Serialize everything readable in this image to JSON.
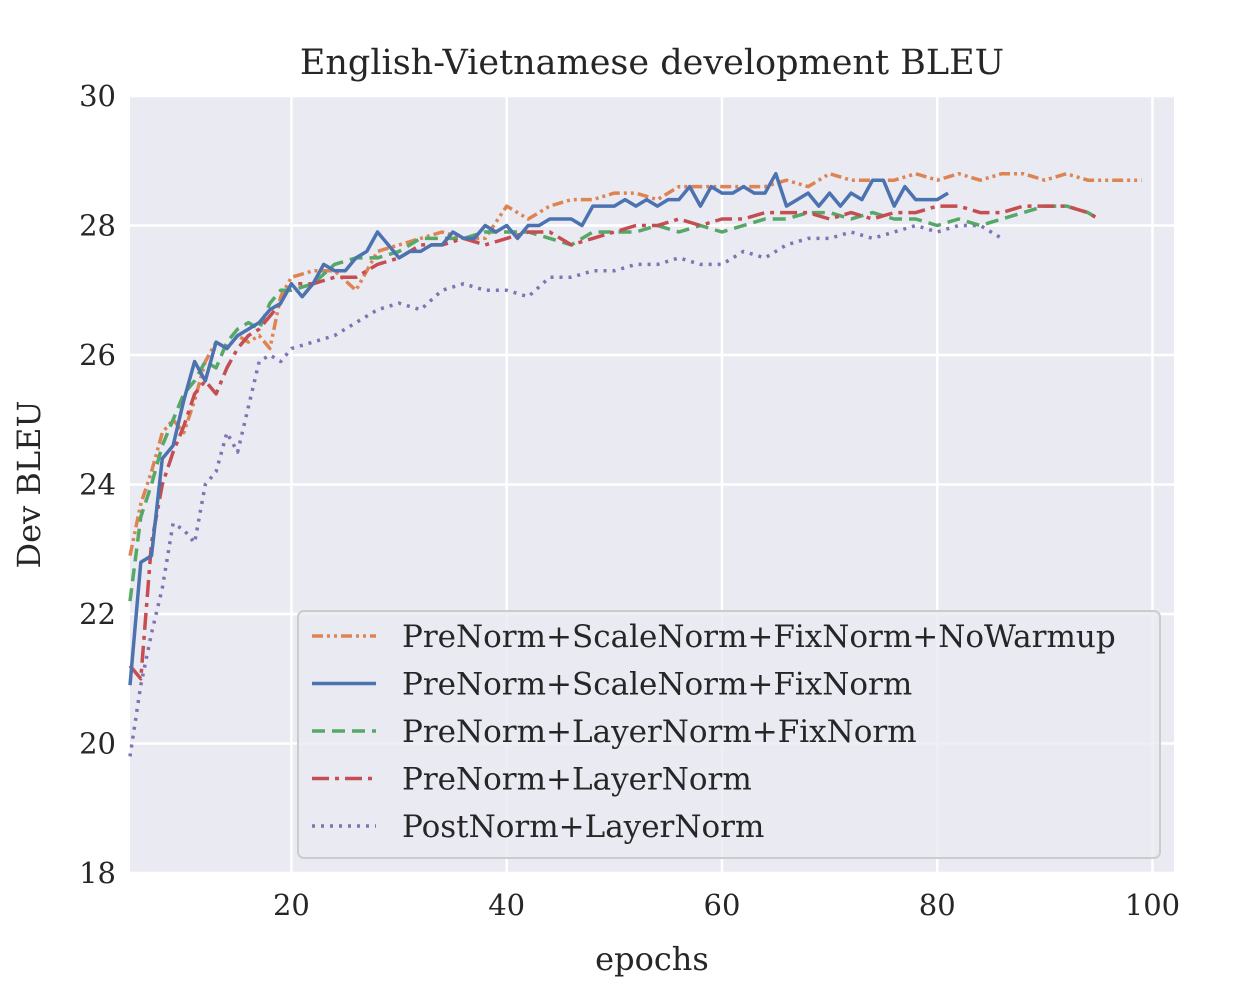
{
  "colors": {
    "background": "#eaeaf2",
    "grid": "#ffffff",
    "legend_bg": "#eaeaf2",
    "legend_border": "#cccccc",
    "text": "#262626"
  },
  "chart_data": {
    "type": "line",
    "title": "English-Vietnamese development BLEU",
    "xlabel": "epochs",
    "ylabel": "Dev BLEU",
    "xlim": [
      5,
      102
    ],
    "ylim": [
      18,
      30
    ],
    "xticks": [
      20,
      40,
      60,
      80,
      100
    ],
    "yticks": [
      18,
      20,
      22,
      24,
      26,
      28,
      30
    ],
    "grid": true,
    "legend_position": "lower-right",
    "series": [
      {
        "name": "PreNorm+ScaleNorm+FixNorm+NoWarmup",
        "color": "#dd8452",
        "dash": "dashdotdot",
        "x": [
          5,
          6,
          7,
          8,
          9,
          10,
          11,
          12,
          13,
          14,
          15,
          16,
          17,
          18,
          19,
          20,
          22,
          24,
          26,
          28,
          30,
          32,
          34,
          36,
          38,
          40,
          42,
          44,
          46,
          48,
          50,
          52,
          54,
          56,
          58,
          60,
          62,
          64,
          66,
          68,
          70,
          72,
          74,
          76,
          78,
          80,
          82,
          84,
          86,
          88,
          90,
          92,
          94,
          96,
          98,
          99
        ],
        "y": [
          22.9,
          23.7,
          24.2,
          24.8,
          25.0,
          24.8,
          25.3,
          25.9,
          26.2,
          26.1,
          26.3,
          26.2,
          26.3,
          26.1,
          26.9,
          27.2,
          27.3,
          27.3,
          27.0,
          27.6,
          27.7,
          27.8,
          27.9,
          27.8,
          27.8,
          28.3,
          28.1,
          28.3,
          28.4,
          28.4,
          28.5,
          28.5,
          28.4,
          28.6,
          28.6,
          28.6,
          28.6,
          28.6,
          28.7,
          28.6,
          28.8,
          28.7,
          28.7,
          28.7,
          28.8,
          28.7,
          28.8,
          28.7,
          28.8,
          28.8,
          28.7,
          28.8,
          28.7,
          28.7,
          28.7,
          28.7
        ]
      },
      {
        "name": "PreNorm+ScaleNorm+FixNorm",
        "color": "#4c72b0",
        "dash": "solid",
        "x": [
          5,
          6,
          7,
          8,
          9,
          10,
          11,
          12,
          13,
          14,
          15,
          16,
          17,
          18,
          19,
          20,
          21,
          22,
          23,
          24,
          25,
          26,
          27,
          28,
          29,
          30,
          31,
          32,
          33,
          34,
          35,
          36,
          37,
          38,
          39,
          40,
          41,
          42,
          43,
          44,
          45,
          46,
          47,
          48,
          49,
          50,
          51,
          52,
          53,
          54,
          55,
          56,
          57,
          58,
          59,
          60,
          61,
          62,
          63,
          64,
          65,
          66,
          67,
          68,
          69,
          70,
          71,
          72,
          73,
          74,
          75,
          76,
          77,
          78,
          79,
          80,
          81
        ],
        "y": [
          20.9,
          22.8,
          22.9,
          24.4,
          24.6,
          25.3,
          25.9,
          25.6,
          26.2,
          26.1,
          26.3,
          26.4,
          26.5,
          26.7,
          26.8,
          27.1,
          26.9,
          27.1,
          27.4,
          27.3,
          27.3,
          27.5,
          27.6,
          27.9,
          27.7,
          27.5,
          27.6,
          27.6,
          27.7,
          27.7,
          27.9,
          27.8,
          27.8,
          28.0,
          27.9,
          28.0,
          27.8,
          28.0,
          28.0,
          28.1,
          28.1,
          28.1,
          28.0,
          28.3,
          28.3,
          28.3,
          28.4,
          28.3,
          28.4,
          28.3,
          28.4,
          28.4,
          28.6,
          28.3,
          28.6,
          28.5,
          28.5,
          28.6,
          28.5,
          28.5,
          28.8,
          28.3,
          28.4,
          28.5,
          28.3,
          28.5,
          28.3,
          28.5,
          28.4,
          28.7,
          28.7,
          28.3,
          28.6,
          28.4,
          28.4,
          28.4,
          28.5
        ]
      },
      {
        "name": "PreNorm+LayerNorm+FixNorm",
        "color": "#55a868",
        "dash": "dashed",
        "x": [
          5,
          6,
          7,
          8,
          9,
          10,
          11,
          12,
          13,
          14,
          15,
          16,
          17,
          18,
          19,
          20,
          22,
          24,
          26,
          28,
          30,
          32,
          34,
          36,
          38,
          40,
          42,
          44,
          46,
          48,
          50,
          52,
          54,
          56,
          58,
          60,
          62,
          64,
          66,
          68,
          70,
          72,
          74,
          76,
          78,
          80,
          82,
          84,
          86,
          88,
          90,
          92,
          94,
          95
        ],
        "y": [
          22.2,
          23.5,
          24.0,
          24.6,
          25.0,
          25.4,
          25.6,
          25.9,
          25.8,
          26.2,
          26.4,
          26.5,
          26.4,
          26.8,
          27.0,
          27.0,
          27.1,
          27.4,
          27.5,
          27.5,
          27.6,
          27.8,
          27.8,
          27.8,
          27.9,
          27.9,
          27.9,
          27.8,
          27.7,
          27.9,
          27.9,
          27.9,
          28.0,
          27.9,
          28.0,
          27.9,
          28.0,
          28.1,
          28.1,
          28.2,
          28.2,
          28.1,
          28.2,
          28.1,
          28.1,
          28.0,
          28.1,
          28.0,
          28.1,
          28.2,
          28.3,
          28.3,
          28.2,
          28.1
        ]
      },
      {
        "name": "PreNorm+LayerNorm",
        "color": "#c44e52",
        "dash": "dashdot",
        "x": [
          5,
          6,
          7,
          8,
          9,
          10,
          11,
          12,
          13,
          14,
          15,
          16,
          17,
          18,
          19,
          20,
          22,
          24,
          26,
          28,
          30,
          32,
          34,
          36,
          38,
          40,
          42,
          44,
          46,
          48,
          50,
          52,
          54,
          56,
          58,
          60,
          62,
          64,
          66,
          68,
          70,
          72,
          74,
          76,
          78,
          80,
          82,
          84,
          86,
          88,
          90,
          92,
          94,
          95
        ],
        "y": [
          21.2,
          21.0,
          23.1,
          24.0,
          24.5,
          24.9,
          25.4,
          25.6,
          25.4,
          25.8,
          26.1,
          26.3,
          26.4,
          26.6,
          26.8,
          27.1,
          27.1,
          27.2,
          27.2,
          27.4,
          27.5,
          27.7,
          27.7,
          27.8,
          27.7,
          27.8,
          27.9,
          27.9,
          27.7,
          27.8,
          27.9,
          28.0,
          28.0,
          28.1,
          28.0,
          28.1,
          28.1,
          28.2,
          28.2,
          28.2,
          28.1,
          28.2,
          28.1,
          28.2,
          28.2,
          28.3,
          28.3,
          28.2,
          28.2,
          28.3,
          28.3,
          28.3,
          28.2,
          28.1
        ]
      },
      {
        "name": "PostNorm+LayerNorm",
        "color": "#8172b3",
        "dash": "dotted",
        "x": [
          5,
          6,
          7,
          8,
          9,
          10,
          11,
          12,
          13,
          14,
          15,
          16,
          17,
          18,
          19,
          20,
          22,
          24,
          26,
          28,
          30,
          32,
          34,
          36,
          38,
          40,
          42,
          44,
          46,
          48,
          50,
          52,
          54,
          56,
          58,
          60,
          62,
          64,
          66,
          68,
          70,
          72,
          74,
          76,
          78,
          80,
          82,
          84,
          86
        ],
        "y": [
          19.8,
          20.9,
          21.7,
          22.4,
          23.4,
          23.3,
          23.1,
          24.0,
          24.2,
          24.8,
          24.5,
          25.2,
          25.9,
          26.0,
          25.9,
          26.1,
          26.2,
          26.3,
          26.5,
          26.7,
          26.8,
          26.7,
          27.0,
          27.1,
          27.0,
          27.0,
          26.9,
          27.2,
          27.2,
          27.3,
          27.3,
          27.4,
          27.4,
          27.5,
          27.4,
          27.4,
          27.6,
          27.5,
          27.7,
          27.8,
          27.8,
          27.9,
          27.8,
          27.9,
          28.0,
          27.9,
          28.0,
          28.0,
          27.8
        ]
      }
    ]
  }
}
